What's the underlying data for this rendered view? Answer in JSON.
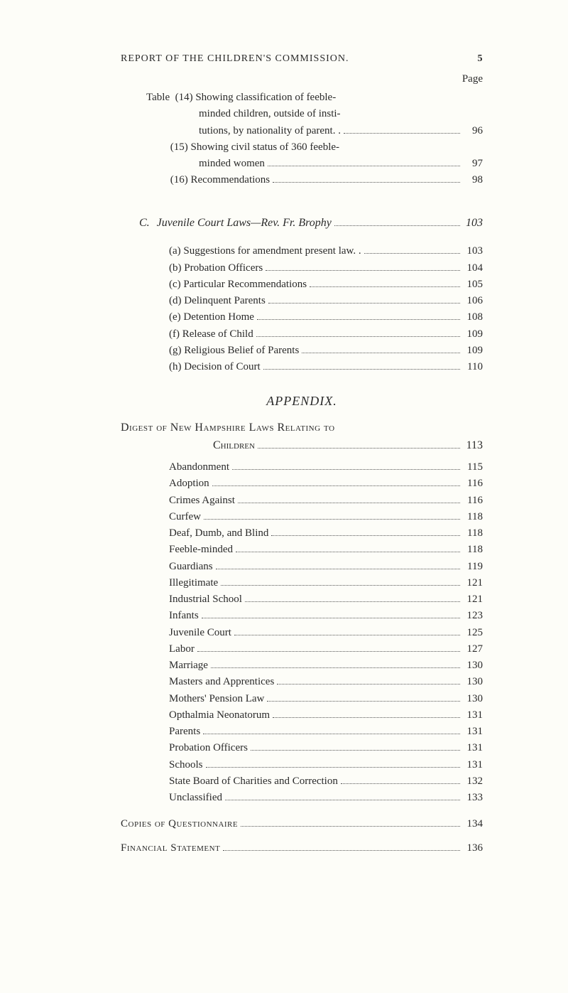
{
  "header": {
    "running_title": "REPORT OF THE CHILDREN'S COMMISSION.",
    "page_number": "5",
    "page_label": "Page"
  },
  "table_items": [
    {
      "prefix": "Table  (14) ",
      "text": "Showing classification of feeble-",
      "page": ""
    },
    {
      "cont": true,
      "text": "minded children, outside of insti-",
      "page": ""
    },
    {
      "cont": true,
      "text": "tutions, by nationality of parent. .",
      "page": "96"
    },
    {
      "prefix": "         (15) ",
      "text": "Showing civil status of 360 feeble-",
      "page": ""
    },
    {
      "cont": true,
      "text": "minded women",
      "page": "97"
    },
    {
      "prefix": "         (16) ",
      "text": "Recommendations",
      "page": "98"
    }
  ],
  "section_c": {
    "letter": "C.",
    "title": "Juvenile Court Laws—Rev. Fr. Brophy",
    "page": "103",
    "items": [
      {
        "marker": "(a)",
        "text": "Suggestions for amendment present law. .",
        "page": "103"
      },
      {
        "marker": "(b)",
        "text": "Probation Officers",
        "page": "104"
      },
      {
        "marker": "(c)",
        "text": "Particular Recommendations",
        "page": "105"
      },
      {
        "marker": "(d)",
        "text": "Delinquent Parents",
        "page": "106"
      },
      {
        "marker": "(e)",
        "text": "Detention Home",
        "page": "108"
      },
      {
        "marker": "(f)",
        "text": "Release of Child",
        "page": "109"
      },
      {
        "marker": "(g)",
        "text": "Religious Belief of Parents",
        "page": "109"
      },
      {
        "marker": "(h)",
        "text": "Decision of Court",
        "page": "110"
      }
    ]
  },
  "appendix_title": "APPENDIX.",
  "digest": {
    "line1": "Digest of New Hampshire Laws Relating to",
    "line2_label": "Children",
    "line2_page": "113",
    "items": [
      {
        "text": "Abandonment",
        "page": "115"
      },
      {
        "text": "Adoption",
        "page": "116"
      },
      {
        "text": "Crimes Against",
        "page": "116"
      },
      {
        "text": "Curfew",
        "page": "118"
      },
      {
        "text": "Deaf, Dumb, and Blind",
        "page": "118"
      },
      {
        "text": "Feeble-minded",
        "page": "118"
      },
      {
        "text": "Guardians",
        "page": "119"
      },
      {
        "text": "Illegitimate",
        "page": "121"
      },
      {
        "text": "Industrial School",
        "page": "121"
      },
      {
        "text": "Infants",
        "page": "123"
      },
      {
        "text": "Juvenile Court",
        "page": "125"
      },
      {
        "text": "Labor",
        "page": "127"
      },
      {
        "text": "Marriage",
        "page": "130"
      },
      {
        "text": "Masters and Apprentices",
        "page": "130"
      },
      {
        "text": "Mothers' Pension Law",
        "page": "130"
      },
      {
        "text": "Opthalmia Neonatorum",
        "page": "131"
      },
      {
        "text": "Parents",
        "page": "131"
      },
      {
        "text": "Probation Officers",
        "page": "131"
      },
      {
        "text": "Schools",
        "page": "131"
      },
      {
        "text": "State Board of Charities and Correction",
        "page": "132"
      },
      {
        "text": "Unclassified",
        "page": "133"
      }
    ]
  },
  "bottom": [
    {
      "label": "Copies of Questionnaire",
      "page": "134"
    },
    {
      "label": "Financial Statement",
      "page": "136"
    }
  ]
}
